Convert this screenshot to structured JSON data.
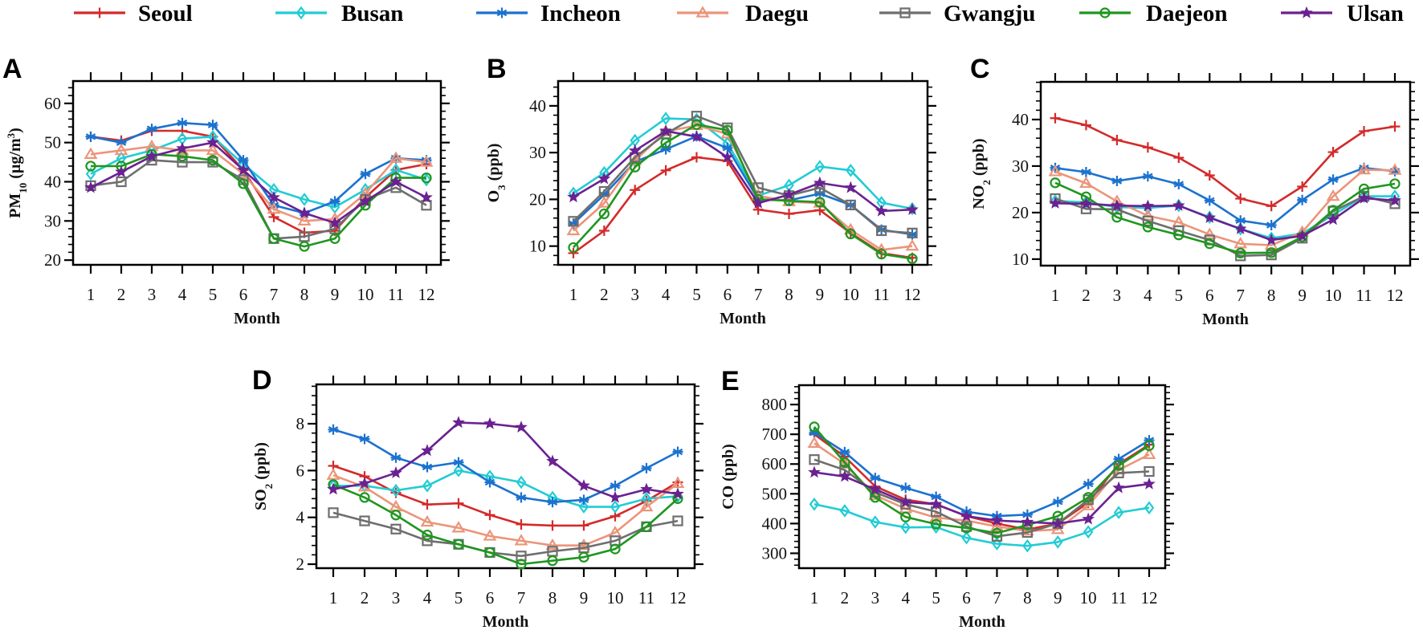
{
  "legend": [
    {
      "name": "Seoul",
      "color": "#d42a2a",
      "marker": "plus"
    },
    {
      "name": "Busan",
      "color": "#22ccd4",
      "marker": "diamond"
    },
    {
      "name": "Incheon",
      "color": "#1b72cf",
      "marker": "asterisk"
    },
    {
      "name": "Daegu",
      "color": "#eb957a",
      "marker": "triangle"
    },
    {
      "name": "Gwangju",
      "color": "#6e6e6e",
      "marker": "square"
    },
    {
      "name": "Daejeon",
      "color": "#1f961f",
      "marker": "circle"
    },
    {
      "name": "Ulsan",
      "color": "#6a2191",
      "marker": "star"
    }
  ],
  "chart_data": [
    {
      "panel": "A",
      "type": "line",
      "xlabel": "Month",
      "ylabel": [
        {
          "t": "PM"
        },
        {
          "t": "10",
          "sub": true
        },
        {
          "t": " (µg/m"
        },
        {
          "t": "3",
          "sup": true
        },
        {
          "t": ")"
        }
      ],
      "x": [
        1,
        2,
        3,
        4,
        5,
        6,
        7,
        8,
        9,
        10,
        11,
        12
      ],
      "ylim": [
        18.8,
        65.7
      ],
      "yticks": [
        20,
        30,
        40,
        50,
        60
      ],
      "grid": false,
      "series": [
        {
          "name": "Seoul",
          "values": [
            51.5,
            50.5,
            53,
            53,
            51.5,
            43,
            31,
            27,
            27.5,
            36,
            43,
            44.5
          ]
        },
        {
          "name": "Busan",
          "values": [
            42,
            46,
            48,
            51,
            51.5,
            44.5,
            38,
            35.5,
            33.5,
            38,
            43,
            40.5
          ]
        },
        {
          "name": "Incheon",
          "values": [
            51.5,
            50,
            53.5,
            55,
            54.5,
            45.5,
            34,
            32,
            35,
            42,
            46,
            45.5
          ]
        },
        {
          "name": "Daegu",
          "values": [
            47,
            48,
            49,
            48,
            48,
            42,
            33,
            30,
            30.5,
            37,
            46,
            45
          ]
        },
        {
          "name": "Gwangju",
          "values": [
            39,
            40,
            45.5,
            45,
            45,
            40.5,
            25.5,
            26,
            28,
            35.5,
            38.5,
            34
          ]
        },
        {
          "name": "Daejeon",
          "values": [
            44,
            44,
            47,
            46.5,
            45.5,
            39.5,
            25.5,
            23.5,
            25.5,
            34,
            41,
            41
          ]
        },
        {
          "name": "Ulsan",
          "values": [
            38.5,
            42.5,
            46.5,
            48.5,
            50,
            43,
            36,
            32,
            29.5,
            35,
            40,
            36
          ]
        }
      ]
    },
    {
      "panel": "B",
      "type": "line",
      "xlabel": "Month",
      "ylabel": [
        {
          "t": "O"
        },
        {
          "t": "3",
          "sub": true
        },
        {
          "t": " (ppb)"
        }
      ],
      "x": [
        1,
        2,
        3,
        4,
        5,
        6,
        7,
        8,
        9,
        10,
        11,
        12
      ],
      "ylim": [
        6,
        45.3
      ],
      "yticks": [
        10,
        20,
        30,
        40
      ],
      "grid": false,
      "series": [
        {
          "name": "Seoul",
          "values": [
            8.5,
            13.3,
            22,
            26.2,
            29,
            28.2,
            17.8,
            16.9,
            17.7,
            12.8,
            8.5,
            7.5
          ]
        },
        {
          "name": "Busan",
          "values": [
            21.3,
            25.7,
            32.6,
            37.3,
            37.1,
            32,
            20.8,
            23,
            27,
            26.2,
            19.3,
            18
          ]
        },
        {
          "name": "Incheon",
          "values": [
            14.8,
            21,
            28,
            30.7,
            33.5,
            31,
            20,
            19.8,
            21.2,
            18.8,
            13.5,
            12.5
          ]
        },
        {
          "name": "Daegu",
          "values": [
            13.3,
            19.2,
            28.3,
            34.5,
            35.8,
            34,
            20.8,
            19.5,
            19.2,
            13.5,
            9.2,
            10
          ]
        },
        {
          "name": "Gwangju",
          "values": [
            15.3,
            21.7,
            29,
            34,
            37.8,
            35.3,
            22.5,
            20.8,
            22.5,
            18.8,
            13.3,
            12.8
          ]
        },
        {
          "name": "Daejeon",
          "values": [
            9.7,
            16.9,
            26.9,
            32.1,
            36,
            34.8,
            20,
            19.7,
            19.4,
            12.6,
            8.3,
            7.3
          ]
        },
        {
          "name": "Ulsan",
          "values": [
            20.5,
            24.4,
            30.4,
            34.6,
            33.4,
            29,
            19.2,
            21,
            23.5,
            22.5,
            17.5,
            17.8
          ]
        }
      ]
    },
    {
      "panel": "C",
      "type": "line",
      "xlabel": "Month",
      "ylabel": [
        {
          "t": "NO"
        },
        {
          "t": "2",
          "sub": true
        },
        {
          "t": " (ppb)"
        }
      ],
      "x": [
        1,
        2,
        3,
        4,
        5,
        6,
        7,
        8,
        9,
        10,
        11,
        12
      ],
      "ylim": [
        8.6,
        48.1
      ],
      "yticks": [
        10,
        20,
        30,
        40
      ],
      "grid": false,
      "series": [
        {
          "name": "Seoul",
          "values": [
            40.3,
            38.8,
            35.6,
            34,
            31.8,
            28,
            23,
            21.4,
            25.6,
            33,
            37.5,
            38.5
          ]
        },
        {
          "name": "Busan",
          "values": [
            22.5,
            22.2,
            21.2,
            21,
            21.5,
            19,
            16.5,
            14.5,
            15.5,
            19.5,
            23.5,
            23.5
          ]
        },
        {
          "name": "Incheon",
          "values": [
            29.6,
            28.7,
            26.8,
            27.8,
            26.1,
            22.6,
            18.3,
            17.3,
            22.7,
            27.1,
            29.6,
            28.9
          ]
        },
        {
          "name": "Daegu",
          "values": [
            28.8,
            26.3,
            22.4,
            19.3,
            17.9,
            15.3,
            13.3,
            13,
            15.8,
            23.5,
            29.2,
            29.1
          ]
        },
        {
          "name": "Gwangju",
          "values": [
            23,
            20.8,
            20.7,
            18.2,
            16.1,
            14.1,
            10.7,
            10.9,
            14.5,
            20.3,
            23.5,
            21.9
          ]
        },
        {
          "name": "Daejeon",
          "values": [
            26.4,
            23.4,
            19,
            16.9,
            15.2,
            13.3,
            11.3,
            11.4,
            14.8,
            20.5,
            25.1,
            26.2
          ]
        },
        {
          "name": "Ulsan",
          "values": [
            22,
            21.9,
            21.5,
            21.4,
            21.5,
            18.9,
            16.5,
            14.1,
            15,
            18.5,
            23.1,
            22.6
          ]
        }
      ]
    },
    {
      "panel": "D",
      "type": "line",
      "xlabel": "Month",
      "ylabel": [
        {
          "t": "SO"
        },
        {
          "t": "2",
          "sub": true
        },
        {
          "t": " (ppb)"
        }
      ],
      "x": [
        1,
        2,
        3,
        4,
        5,
        6,
        7,
        8,
        9,
        10,
        11,
        12
      ],
      "ylim": [
        1.83,
        9.68
      ],
      "yticks": [
        2,
        4,
        6,
        8
      ],
      "grid": false,
      "series": [
        {
          "name": "Seoul",
          "values": [
            6.2,
            5.75,
            5.05,
            4.55,
            4.6,
            4.1,
            3.7,
            3.65,
            3.65,
            4.05,
            4.7,
            5.5
          ]
        },
        {
          "name": "Busan",
          "values": [
            5.35,
            5.35,
            5.15,
            5.35,
            6,
            5.75,
            5.5,
            4.85,
            4.45,
            4.45,
            4.8,
            4.9
          ]
        },
        {
          "name": "Incheon",
          "values": [
            7.75,
            7.35,
            6.55,
            6.15,
            6.35,
            5.5,
            4.85,
            4.65,
            4.75,
            5.35,
            6.1,
            6.8
          ]
        },
        {
          "name": "Daegu",
          "values": [
            5.8,
            5.3,
            4.45,
            3.8,
            3.55,
            3.2,
            3,
            2.8,
            2.8,
            3.35,
            4.45,
            5.45
          ]
        },
        {
          "name": "Gwangju",
          "values": [
            4.2,
            3.85,
            3.5,
            3,
            2.85,
            2.5,
            2.35,
            2.55,
            2.7,
            3,
            3.6,
            3.85
          ]
        },
        {
          "name": "Daejeon",
          "values": [
            5.4,
            4.85,
            4.1,
            3.25,
            2.85,
            2.5,
            2,
            2.15,
            2.3,
            2.65,
            3.6,
            4.8
          ]
        },
        {
          "name": "Ulsan",
          "values": [
            5.2,
            5.45,
            5.9,
            6.85,
            8.05,
            8,
            7.85,
            6.4,
            5.35,
            4.85,
            5.2,
            5
          ]
        }
      ]
    },
    {
      "panel": "E",
      "type": "line",
      "xlabel": "Month",
      "ylabel": [
        {
          "t": "CO (ppb)"
        }
      ],
      "x": [
        1,
        2,
        3,
        4,
        5,
        6,
        7,
        8,
        9,
        10,
        11,
        12
      ],
      "ylim": [
        250,
        865
      ],
      "yticks": [
        300,
        400,
        500,
        600,
        700,
        800
      ],
      "grid": false,
      "series": [
        {
          "name": "Seoul",
          "values": [
            700,
            625,
            525,
            480,
            465,
            425,
            400,
            380,
            400,
            470,
            600,
            665
          ]
        },
        {
          "name": "Busan",
          "values": [
            465,
            443,
            405,
            387,
            388,
            352,
            332,
            325,
            338,
            372,
            437,
            453
          ]
        },
        {
          "name": "Incheon",
          "values": [
            705,
            640,
            553,
            520,
            490,
            440,
            425,
            430,
            473,
            533,
            617,
            680
          ]
        },
        {
          "name": "Daegu",
          "values": [
            670,
            600,
            495,
            450,
            420,
            410,
            390,
            375,
            380,
            460,
            580,
            632
          ]
        },
        {
          "name": "Gwangju",
          "values": [
            615,
            580,
            505,
            465,
            440,
            390,
            357,
            370,
            400,
            480,
            570,
            575
          ]
        },
        {
          "name": "Daejeon",
          "values": [
            725,
            605,
            488,
            422,
            398,
            385,
            368,
            395,
            425,
            488,
            595,
            662
          ]
        },
        {
          "name": "Ulsan",
          "values": [
            572,
            558,
            515,
            472,
            465,
            425,
            410,
            405,
            400,
            415,
            520,
            533
          ]
        }
      ]
    }
  ]
}
